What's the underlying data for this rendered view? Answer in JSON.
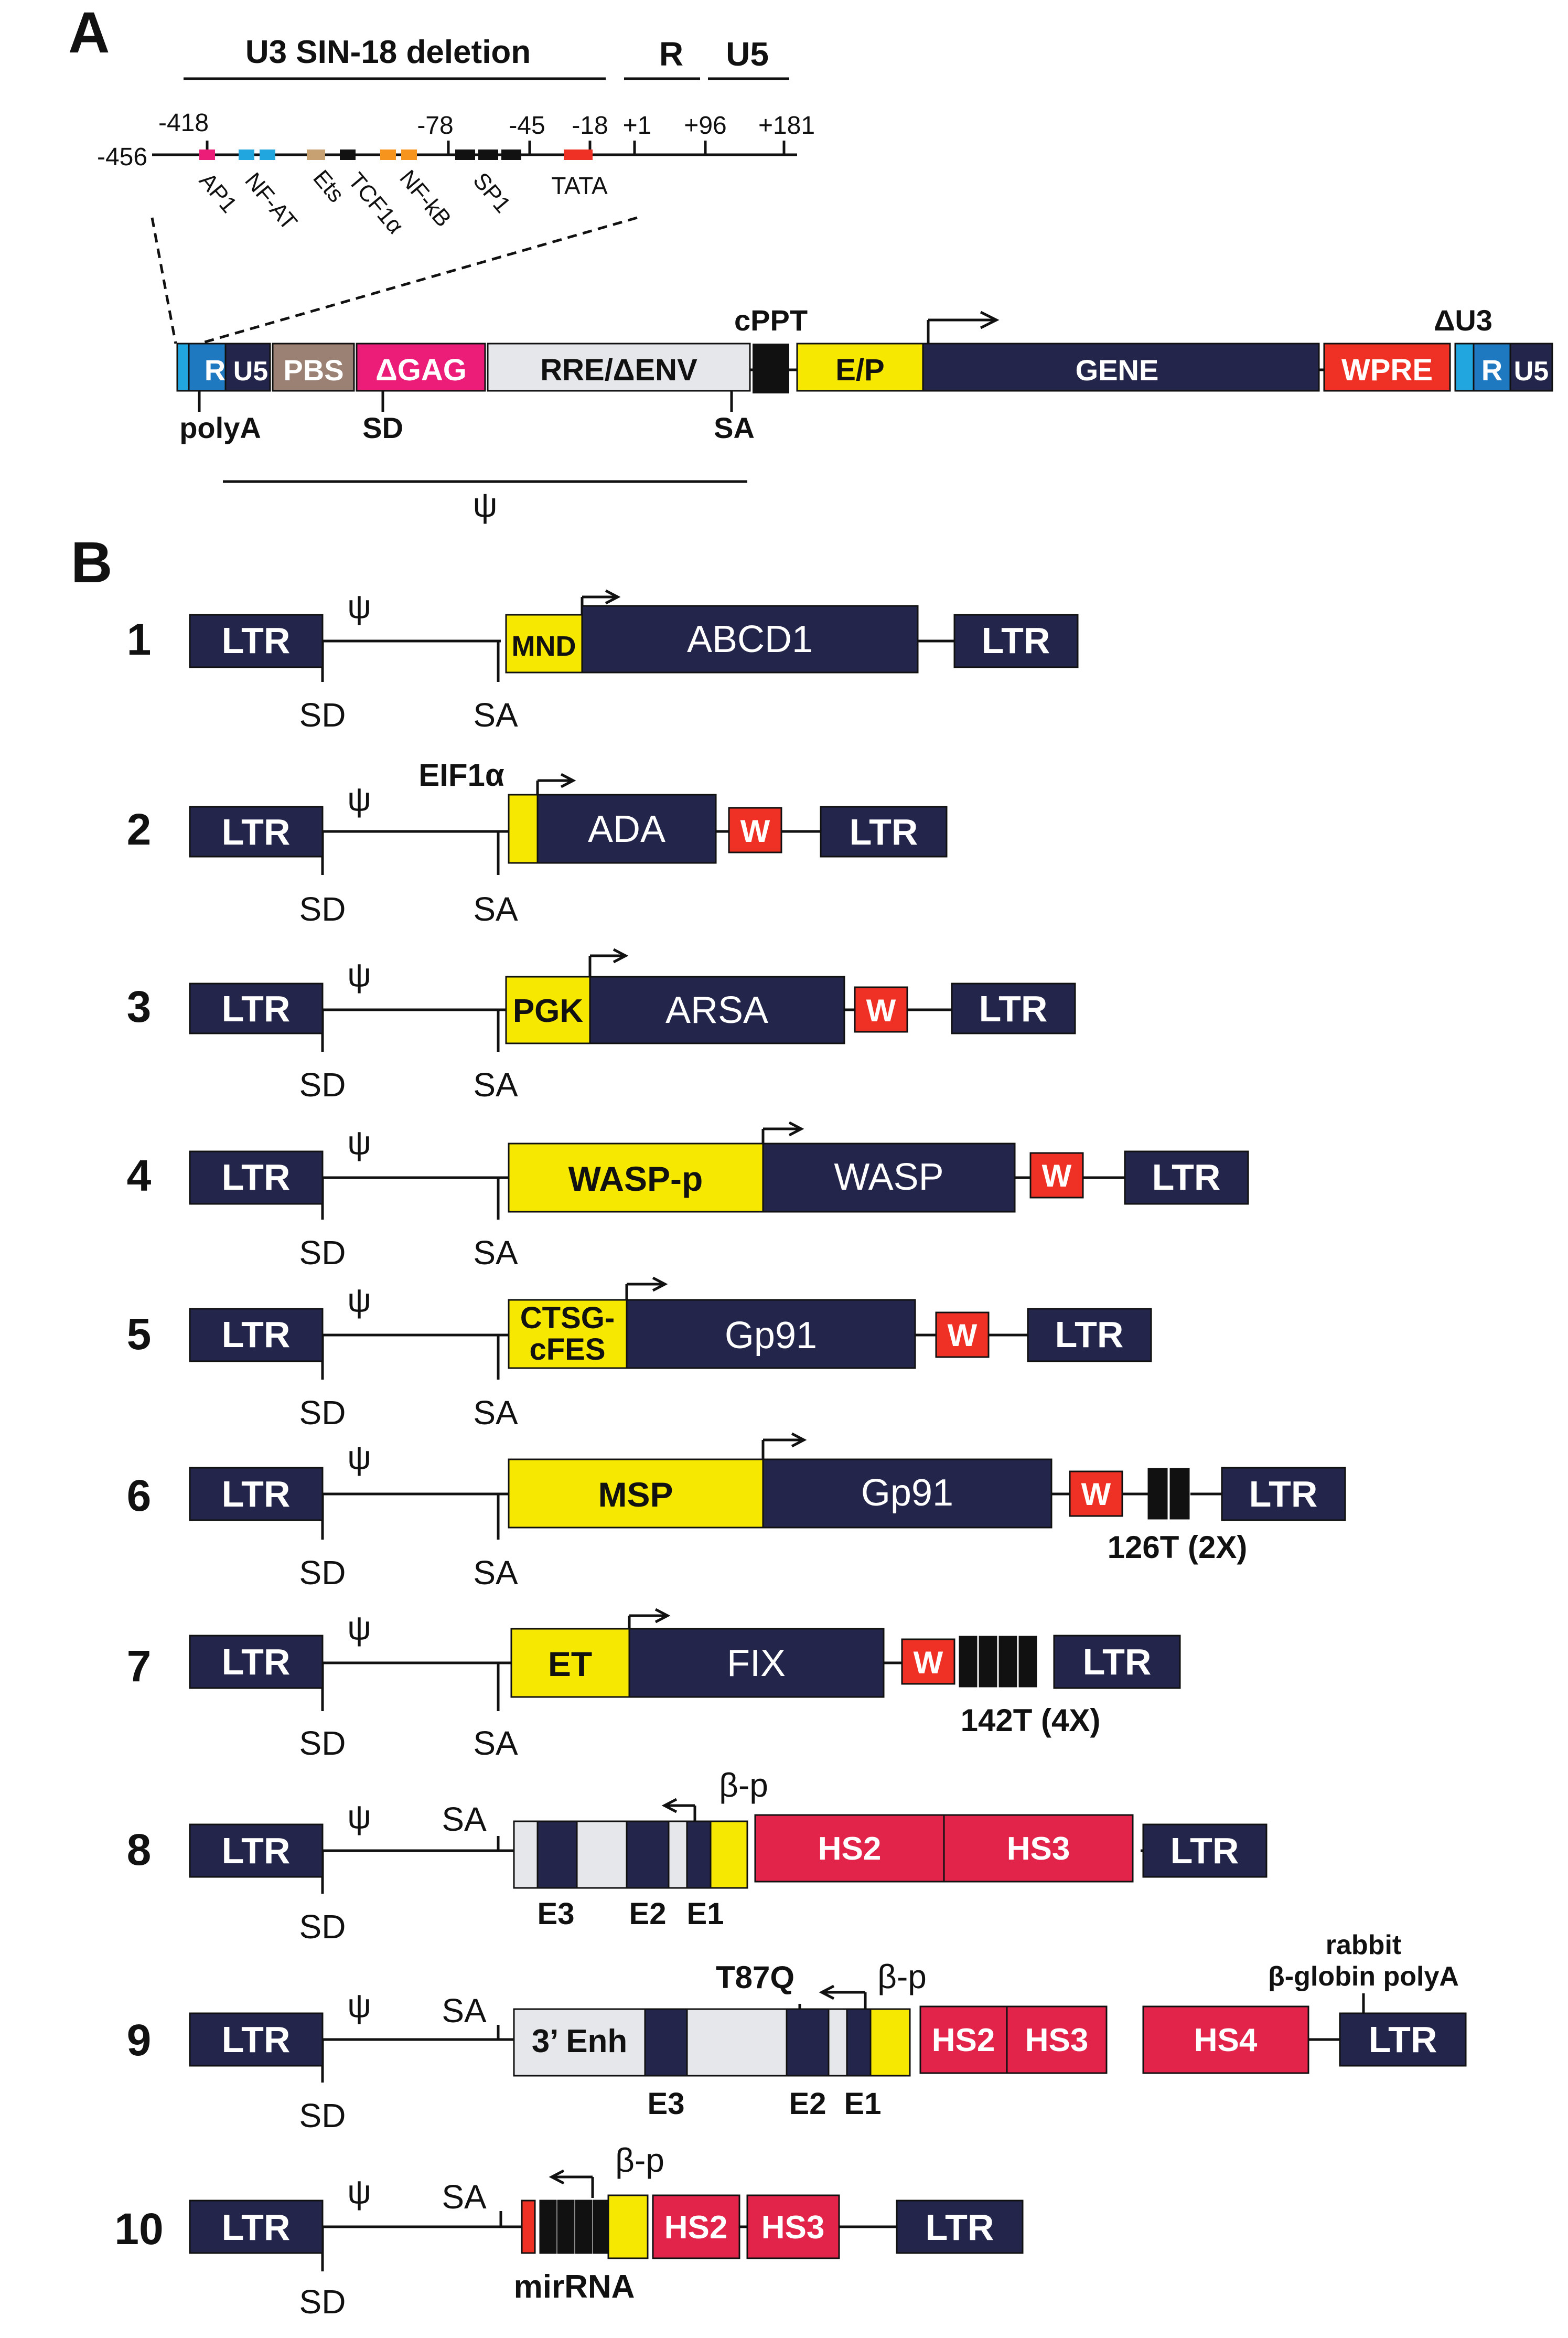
{
  "colors": {
    "navy": "#24254a",
    "yellow": "#f6e800",
    "red": "#ee3124",
    "crimson": "#e2234a",
    "pink": "#ec1d79",
    "cyan": "#21a6e0",
    "tan": "#c8a173",
    "orange": "#f7941d",
    "grey": "#e6e7ea",
    "pbs": "#9a8173",
    "black": "#111111",
    "rblue": "#1f79c0"
  },
  "panelA": {
    "label": "A",
    "headers": {
      "u3": "U3 SIN-18 deletion",
      "r": "R",
      "u5": "U5"
    },
    "positions": [
      "-456",
      "-418",
      "-78",
      "-45",
      "-18",
      "+1",
      "+96",
      "+181"
    ],
    "sites": [
      "AP1",
      "NF-AT",
      "Ets",
      "TCF1α",
      "NF-kB",
      "SP1",
      "TATA"
    ],
    "segments": {
      "r": "R",
      "u5": "U5",
      "pbs": "PBS",
      "gag": "ΔGAG",
      "rre": "RRE/ΔENV",
      "ep": "E/P",
      "gene": "GENE",
      "wpre": "WPRE",
      "r2": "R",
      "u52": "U5"
    },
    "annotations": {
      "cppt": "cPPT",
      "du3": "ΔU3",
      "polya": "polyA",
      "sd": "SD",
      "sa": "SA",
      "psi": "ψ"
    }
  },
  "panelB": {
    "label": "B",
    "ltr": "LTR",
    "w": "W",
    "sd": "SD",
    "sa": "SA",
    "psi": "ψ",
    "constructs": [
      {
        "num": "1",
        "promoter": "MND",
        "gene": "ABCD1"
      },
      {
        "num": "2",
        "promoter": "EIF1α",
        "gene": "ADA"
      },
      {
        "num": "3",
        "promoter": "PGK",
        "gene": "ARSA"
      },
      {
        "num": "4",
        "promoter": "WASP-p",
        "gene": "WASP"
      },
      {
        "num": "5",
        "promoter_l1": "CTSG-",
        "promoter_l2": "cFES",
        "gene": "Gp91"
      },
      {
        "num": "6",
        "promoter": "MSP",
        "gene": "Gp91",
        "mirt": "126T (2X)"
      },
      {
        "num": "7",
        "promoter": "ET",
        "gene": "FIX",
        "mirt": "142T (4X)"
      },
      {
        "num": "8",
        "bp": "β-p",
        "exons": [
          "E3",
          "E2",
          "E1"
        ],
        "hs": [
          "HS2",
          "HS3"
        ]
      },
      {
        "num": "9",
        "enh": "3’ Enh",
        "t87q": "T87Q",
        "bp": "β-p",
        "exons": [
          "E3",
          "E2",
          "E1"
        ],
        "hs": [
          "HS2",
          "HS3",
          "HS4"
        ],
        "polya_l1": "rabbit",
        "polya_l2": "β-globin polyA"
      },
      {
        "num": "10",
        "bp": "β-p",
        "hs": [
          "HS2",
          "HS3"
        ],
        "mirna": "mirRNA"
      }
    ]
  }
}
